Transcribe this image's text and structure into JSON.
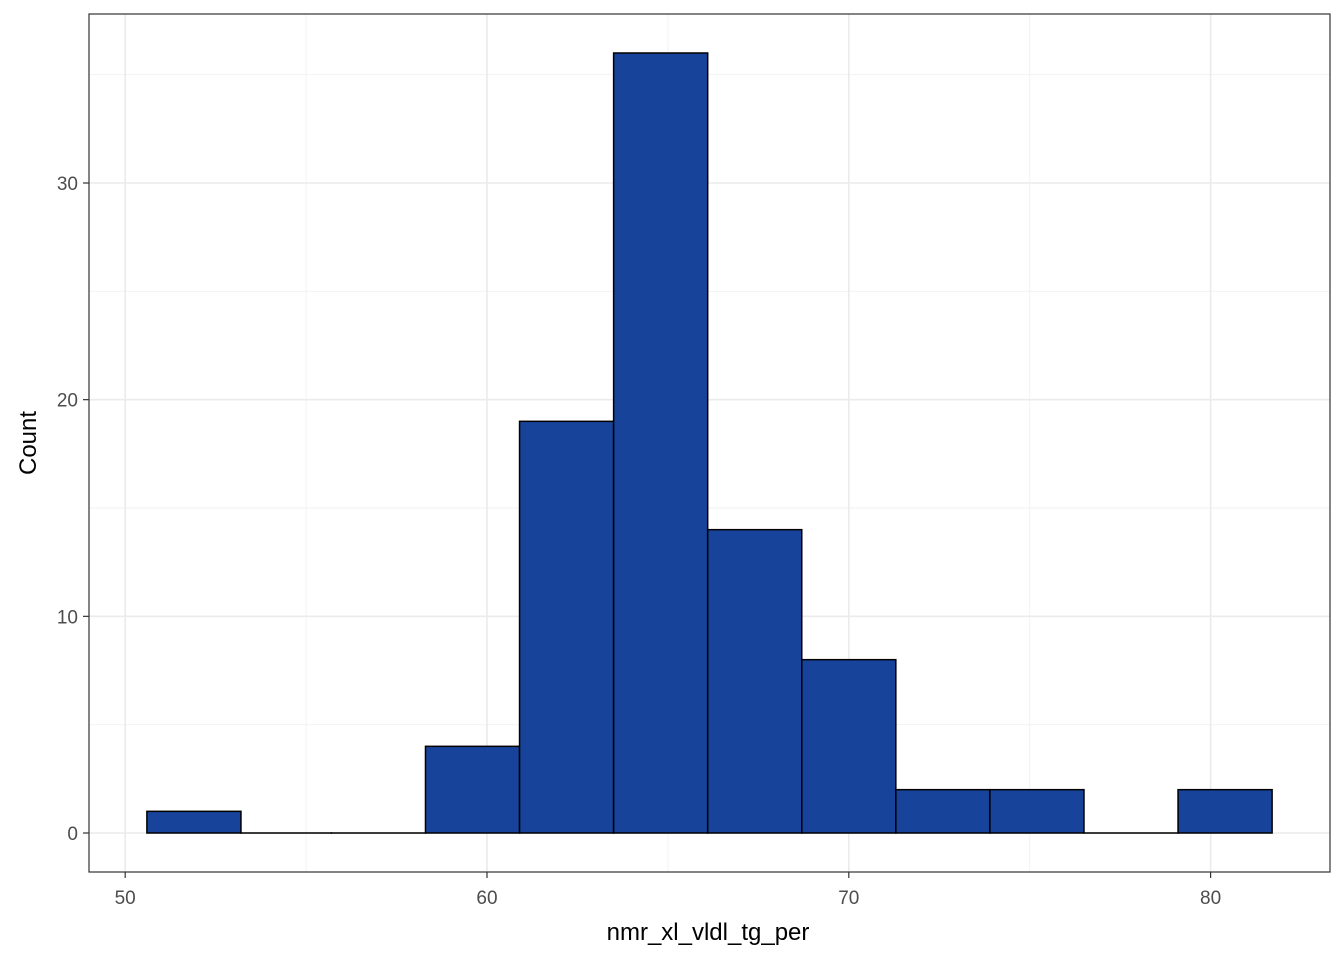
{
  "chart_data": {
    "type": "bar",
    "subtype": "histogram",
    "title": "",
    "xlabel": "nmr_xl_vldl_tg_per",
    "ylabel": "Count",
    "bins": [
      {
        "x0": 50.6,
        "x1": 53.2,
        "count": 1
      },
      {
        "x0": 53.2,
        "x1": 55.7,
        "count": 0
      },
      {
        "x0": 55.7,
        "x1": 58.3,
        "count": 0
      },
      {
        "x0": 58.3,
        "x1": 60.9,
        "count": 4
      },
      {
        "x0": 60.9,
        "x1": 63.5,
        "count": 19
      },
      {
        "x0": 63.5,
        "x1": 66.1,
        "count": 36
      },
      {
        "x0": 66.1,
        "x1": 68.7,
        "count": 14
      },
      {
        "x0": 68.7,
        "x1": 71.3,
        "count": 8
      },
      {
        "x0": 71.3,
        "x1": 73.9,
        "count": 2
      },
      {
        "x0": 73.9,
        "x1": 76.5,
        "count": 2
      },
      {
        "x0": 76.5,
        "x1": 79.1,
        "count": 0
      },
      {
        "x0": 79.1,
        "x1": 81.7,
        "count": 2
      }
    ],
    "xlim": [
      49.0,
      83.3
    ],
    "ylim": [
      -1.8,
      37.8
    ],
    "x_ticks": [
      50,
      60,
      70,
      80
    ],
    "x_minor_ticks": [
      55,
      65,
      75
    ],
    "y_ticks": [
      0,
      10,
      20,
      30
    ],
    "y_minor_ticks": [
      5,
      15,
      25,
      35
    ],
    "grid": true,
    "legend": "none",
    "colors": {
      "bar_fill": "#17449A",
      "bar_stroke": "#000000",
      "grid_major": "#EBEBEB",
      "grid_minor": "#F2F2F2",
      "panel_border": "#333333"
    }
  }
}
